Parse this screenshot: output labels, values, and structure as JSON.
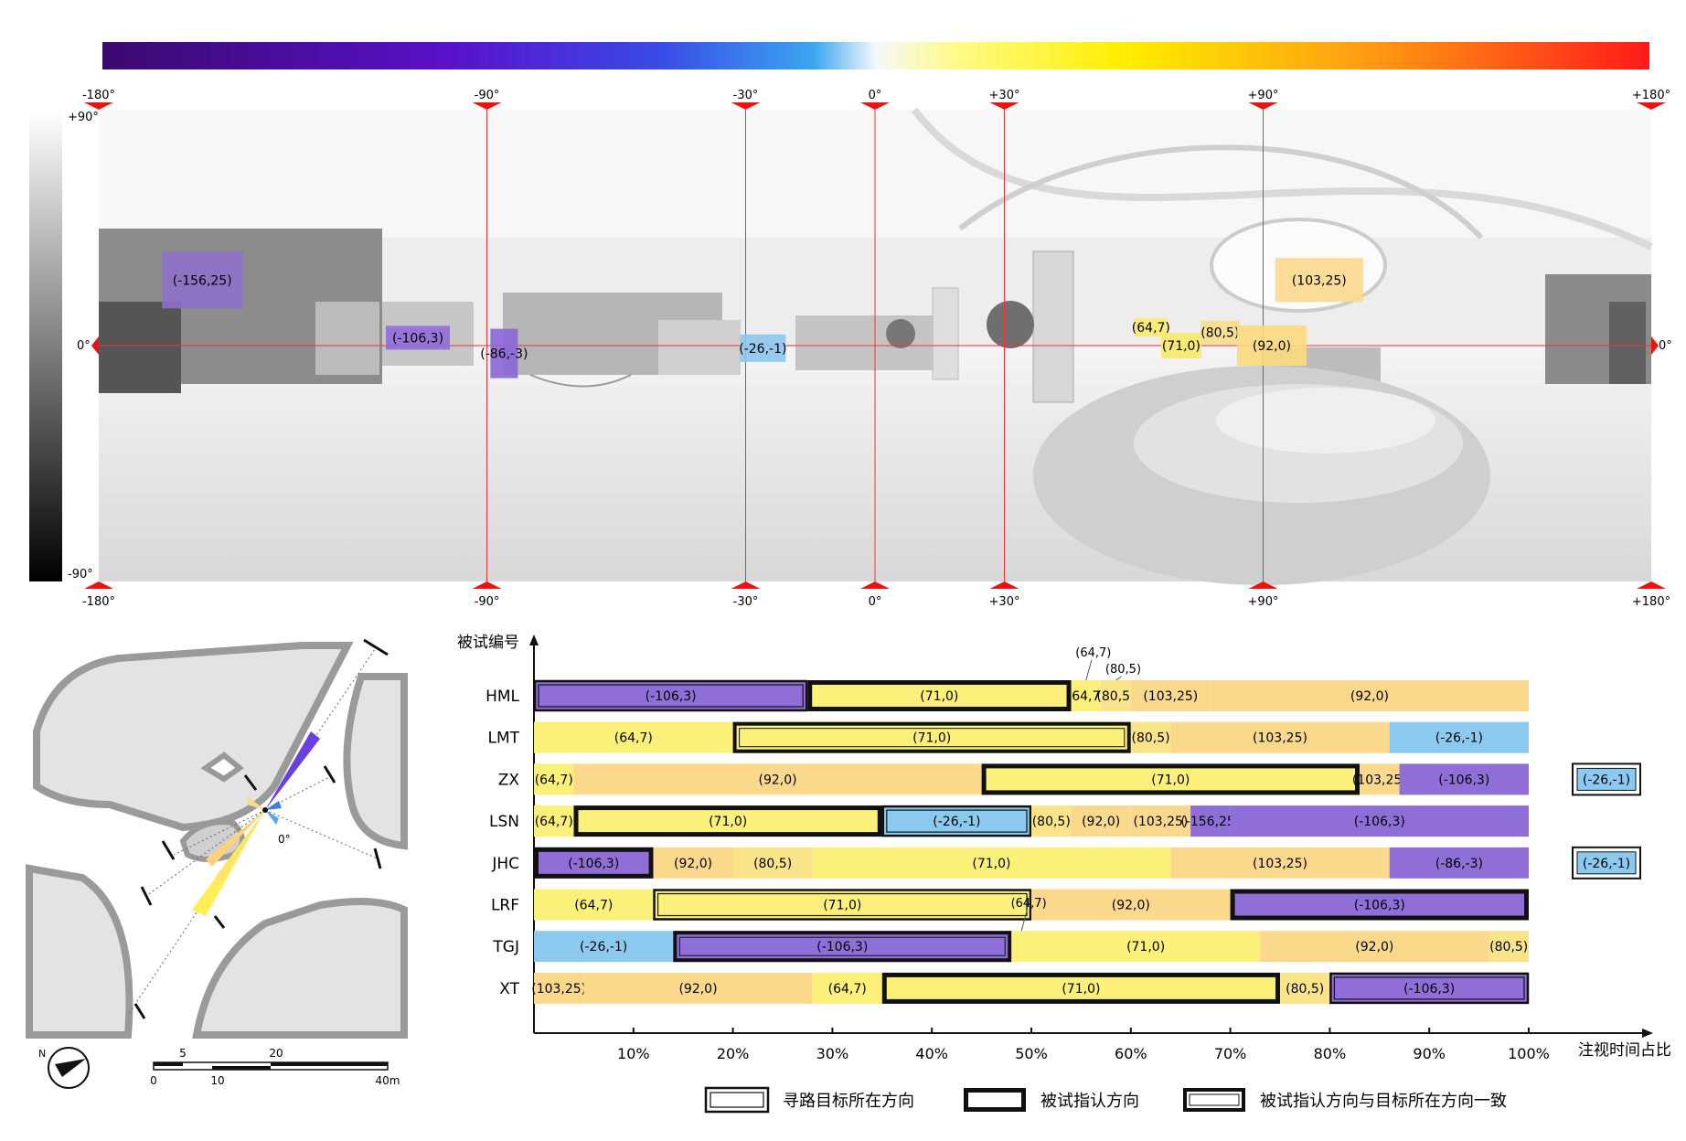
{
  "chart_data": [
    {
      "type": "heatmap",
      "colorbar": [
        "#3b0a6e",
        "#5a10c8",
        "#3a4be6",
        "#3aa6f0",
        "#f5f8fb",
        "#fffb8a",
        "#ffee00",
        "#ff9a12",
        "#ff1a1a"
      ],
      "x_ticks": [
        "-180°",
        "-90°",
        "-30°",
        "0°",
        "+30°",
        "+90°",
        "+180°"
      ],
      "x_tick_values": [
        -180,
        -90,
        -30,
        0,
        30,
        90,
        180
      ],
      "y_ticks": [
        "+90°",
        "0°",
        "-90°"
      ],
      "right_label": "0°",
      "annotations": [
        {
          "label": "(-156,25)",
          "yaw": -156,
          "pitch": 25,
          "color": "#8e6fc9"
        },
        {
          "label": "(-106,3)",
          "yaw": -106,
          "pitch": 3,
          "color": "#8f6bd9"
        },
        {
          "label": "(-86,-3)",
          "yaw": -86,
          "pitch": -3,
          "color": "#8a66d8"
        },
        {
          "label": "(-26,-1)",
          "yaw": -26,
          "pitch": -1,
          "color": "#8cc7ee"
        },
        {
          "label": "(64,7)",
          "yaw": 64,
          "pitch": 7,
          "color": "#fbe96d"
        },
        {
          "label": "(71,0)",
          "yaw": 71,
          "pitch": 0,
          "color": "#f9e86a"
        },
        {
          "label": "(80,5)",
          "yaw": 80,
          "pitch": 5,
          "color": "#f9dd8a"
        },
        {
          "label": "(92,0)",
          "yaw": 92,
          "pitch": 0,
          "color": "#fbd97e"
        },
        {
          "label": "(103,25)",
          "yaw": 103,
          "pitch": 25,
          "color": "#fbd98e"
        }
      ]
    },
    {
      "type": "bar",
      "orientation": "horizontal-stacked",
      "ylabel": "被试编号",
      "xlabel": "注视时间占比",
      "x_ticks": [
        "10%",
        "20%",
        "30%",
        "40%",
        "50%",
        "60%",
        "70%",
        "80%",
        "90%",
        "100%"
      ],
      "colors": {
        "(-106,3)": "#8f6ed8",
        "(-86,-3)": "#8f6ed8",
        "(-156,25)": "#8f6ed8",
        "(-26,-1)": "#8cc9ef",
        "(64,7)": "#fbf07a",
        "(71,0)": "#fbf07a",
        "(80,5)": "#f9e48a",
        "(92,0)": "#fbd98c",
        "(103,25)": "#fbd98c"
      },
      "subjects": [
        {
          "id": "HML",
          "segments": [
            {
              "label": "(-106,3)",
              "start": 0,
              "end": 27.5,
              "box": "target"
            },
            {
              "label": "(71,0)",
              "start": 27.5,
              "end": 54,
              "box": "subject"
            },
            {
              "label": "(64,7)",
              "start": 54,
              "end": 57
            },
            {
              "label": "(80,5)",
              "start": 57,
              "end": 60
            },
            {
              "label": "(103,25)",
              "start": 60,
              "end": 68
            },
            {
              "label": "(92,0)",
              "start": 68,
              "end": 100
            }
          ],
          "callouts": [
            "(64,7)",
            "(80,5)"
          ]
        },
        {
          "id": "LMT",
          "segments": [
            {
              "label": "(64,7)",
              "start": 0,
              "end": 20
            },
            {
              "label": "(71,0)",
              "start": 20,
              "end": 60,
              "box": "match"
            },
            {
              "label": "(80,5)",
              "start": 60,
              "end": 64
            },
            {
              "label": "(103,25)",
              "start": 64,
              "end": 86
            },
            {
              "label": "(-26,-1)",
              "start": 86,
              "end": 100
            }
          ]
        },
        {
          "id": "ZX",
          "segments": [
            {
              "label": "(64,7)",
              "start": 0,
              "end": 4
            },
            {
              "label": "(92,0)",
              "start": 4,
              "end": 45
            },
            {
              "label": "(71,0)",
              "start": 45,
              "end": 83,
              "box": "subject"
            },
            {
              "label": "(103,25)",
              "start": 83,
              "end": 87
            },
            {
              "label": "(-106,3)",
              "start": 87,
              "end": 100
            }
          ],
          "side_target": "(-26,-1)"
        },
        {
          "id": "LSN",
          "segments": [
            {
              "label": "(64,7)",
              "start": 0,
              "end": 4
            },
            {
              "label": "(71,0)",
              "start": 4,
              "end": 35,
              "box": "subject"
            },
            {
              "label": "(-26,-1)",
              "start": 35,
              "end": 50,
              "box": "target"
            },
            {
              "label": "(80,5)",
              "start": 50,
              "end": 54
            },
            {
              "label": "(92,0)",
              "start": 54,
              "end": 60
            },
            {
              "label": "(103,25)",
              "start": 60,
              "end": 66
            },
            {
              "label": "(-156,25)",
              "start": 66,
              "end": 70
            },
            {
              "label": "(-106,3)",
              "start": 70,
              "end": 100
            }
          ]
        },
        {
          "id": "JHC",
          "segments": [
            {
              "label": "(-106,3)",
              "start": 0,
              "end": 12,
              "box": "subject"
            },
            {
              "label": "(92,0)",
              "start": 12,
              "end": 20
            },
            {
              "label": "(80,5)",
              "start": 20,
              "end": 28
            },
            {
              "label": "(71,0)",
              "start": 28,
              "end": 64
            },
            {
              "label": "(103,25)",
              "start": 64,
              "end": 86
            },
            {
              "label": "(-86,-3)",
              "start": 86,
              "end": 100
            }
          ],
          "side_target": "(-26,-1)"
        },
        {
          "id": "LRF",
          "segments": [
            {
              "label": "(64,7)",
              "start": 0,
              "end": 12
            },
            {
              "label": "(71,0)",
              "start": 12,
              "end": 50,
              "box": "target"
            },
            {
              "label": "(92,0)",
              "start": 50,
              "end": 70
            },
            {
              "label": "(-106,3)",
              "start": 70,
              "end": 100,
              "box": "subject"
            }
          ]
        },
        {
          "id": "TGJ",
          "segments": [
            {
              "label": "(-26,-1)",
              "start": 0,
              "end": 14
            },
            {
              "label": "(-106,3)",
              "start": 14,
              "end": 48,
              "box": "match"
            },
            {
              "label": "(64,7)",
              "start": 48,
              "end": 50
            },
            {
              "label": "(71,0)",
              "start": 50,
              "end": 73
            },
            {
              "label": "(92,0)",
              "start": 73,
              "end": 96
            },
            {
              "label": "(80,5)",
              "start": 96,
              "end": 100
            }
          ],
          "callouts": [
            "(64,7)"
          ]
        },
        {
          "id": "XT",
          "segments": [
            {
              "label": "(103,25)",
              "start": 0,
              "end": 5
            },
            {
              "label": "(92,0)",
              "start": 5,
              "end": 28
            },
            {
              "label": "(64,7)",
              "start": 28,
              "end": 35
            },
            {
              "label": "(71,0)",
              "start": 35,
              "end": 75,
              "box": "subject"
            },
            {
              "label": "(80,5)",
              "start": 75,
              "end": 80
            },
            {
              "label": "(-106,3)",
              "start": 80,
              "end": 100,
              "box": "target"
            }
          ]
        }
      ],
      "legend": [
        {
          "key": "target",
          "label": "寻路目标所在方向"
        },
        {
          "key": "subject",
          "label": "被试指认方向"
        },
        {
          "key": "match",
          "label": "被试指认方向与目标所在方向一致"
        }
      ]
    }
  ],
  "map": {
    "origin_label": "0°",
    "north_label": "N",
    "scale_top": [
      "5",
      "20"
    ],
    "scale_bottom": [
      "0",
      "10",
      "40m"
    ]
  }
}
